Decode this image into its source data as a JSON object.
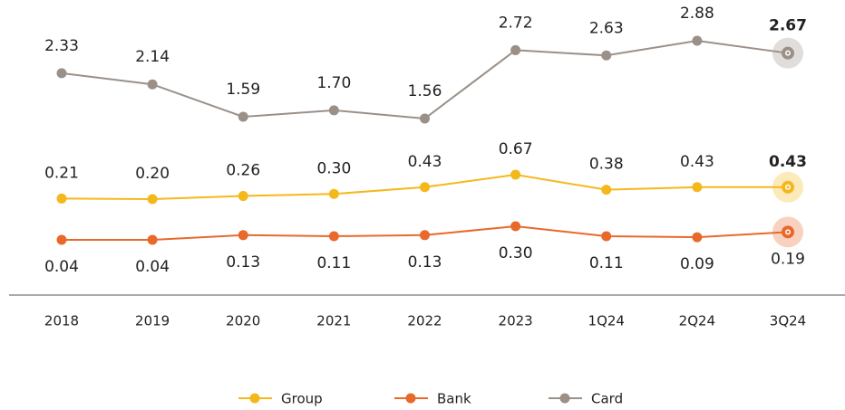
{
  "chart_data": {
    "type": "line",
    "categories": [
      "2018",
      "2019",
      "2020",
      "2021",
      "2022",
      "2023",
      "1Q24",
      "2Q24",
      "3Q24"
    ],
    "series": [
      {
        "name": "Card",
        "color": "#9a9088",
        "values": [
          2.33,
          2.14,
          1.59,
          1.7,
          1.56,
          2.72,
          2.63,
          2.88,
          2.67
        ],
        "value_labels": [
          "2.33",
          "2.14",
          "1.59",
          "1.70",
          "1.56",
          "2.72",
          "2.63",
          "2.88",
          "2.67"
        ]
      },
      {
        "name": "Group",
        "color": "#f5b81c",
        "values": [
          0.21,
          0.2,
          0.26,
          0.3,
          0.43,
          0.67,
          0.38,
          0.43,
          0.43
        ],
        "value_labels": [
          "0.21",
          "0.20",
          "0.26",
          "0.30",
          "0.43",
          "0.67",
          "0.38",
          "0.43",
          "0.43"
        ]
      },
      {
        "name": "Bank",
        "color": "#e8692a",
        "values": [
          0.04,
          0.04,
          0.13,
          0.11,
          0.13,
          0.3,
          0.11,
          0.09,
          0.19
        ],
        "value_labels": [
          "0.04",
          "0.04",
          "0.13",
          "0.11",
          "0.13",
          "0.30",
          "0.11",
          "0.09",
          "0.19"
        ]
      }
    ]
  }
}
